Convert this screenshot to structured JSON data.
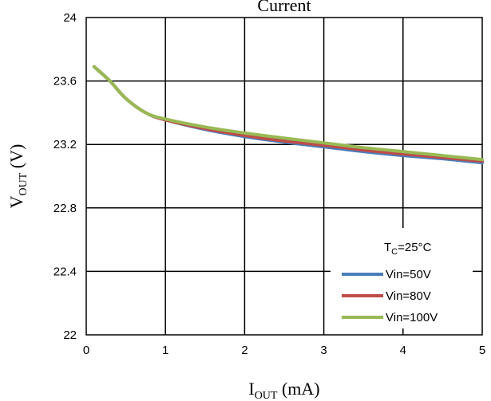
{
  "chart_data": {
    "type": "line",
    "title": "Current",
    "xlabel": {
      "main": "I",
      "sub": "OUT",
      "rest": " (mA)"
    },
    "ylabel": {
      "main": "V",
      "sub": "OUT",
      "rest": " (V)"
    },
    "xlim": [
      0,
      5
    ],
    "ylim": [
      22,
      24
    ],
    "xticks": [
      0,
      1,
      2,
      3,
      4,
      5
    ],
    "yticks": [
      22,
      22.4,
      22.8,
      23.2,
      23.6,
      24
    ],
    "xtick_labels": [
      "0",
      "1",
      "2",
      "3",
      "4",
      "5"
    ],
    "ytick_labels": [
      "22",
      "22.4",
      "22.8",
      "23.2",
      "23.6",
      "24"
    ],
    "grid": true,
    "legend_position": "bottom-right",
    "legend_title": {
      "main": "T",
      "sub": "C",
      "rest": "=25°C"
    },
    "series": [
      {
        "name": "Vin=50V",
        "color": "#4a7ebb",
        "x": [
          0.1,
          0.3,
          0.5,
          0.75,
          1.0,
          1.5,
          2.0,
          2.5,
          3.0,
          3.5,
          4.0,
          4.5,
          5.0
        ],
        "y": [
          23.69,
          23.6,
          23.49,
          23.4,
          23.355,
          23.295,
          23.25,
          23.215,
          23.185,
          23.155,
          23.13,
          23.11,
          23.085
        ]
      },
      {
        "name": "Vin=80V",
        "color": "#be4b48",
        "x": [
          0.1,
          0.3,
          0.5,
          0.75,
          1.0,
          1.5,
          2.0,
          2.5,
          3.0,
          3.5,
          4.0,
          4.5,
          5.0
        ],
        "y": [
          23.69,
          23.6,
          23.49,
          23.4,
          23.355,
          23.3,
          23.257,
          23.222,
          23.195,
          23.165,
          23.14,
          23.118,
          23.095
        ]
      },
      {
        "name": "Vin=100V",
        "color": "#98b954",
        "x": [
          0.1,
          0.3,
          0.5,
          0.75,
          1.0,
          1.5,
          2.0,
          2.5,
          3.0,
          3.5,
          4.0,
          4.5,
          5.0
        ],
        "y": [
          23.69,
          23.6,
          23.49,
          23.4,
          23.36,
          23.31,
          23.272,
          23.24,
          23.21,
          23.18,
          23.155,
          23.13,
          23.105
        ]
      }
    ]
  }
}
